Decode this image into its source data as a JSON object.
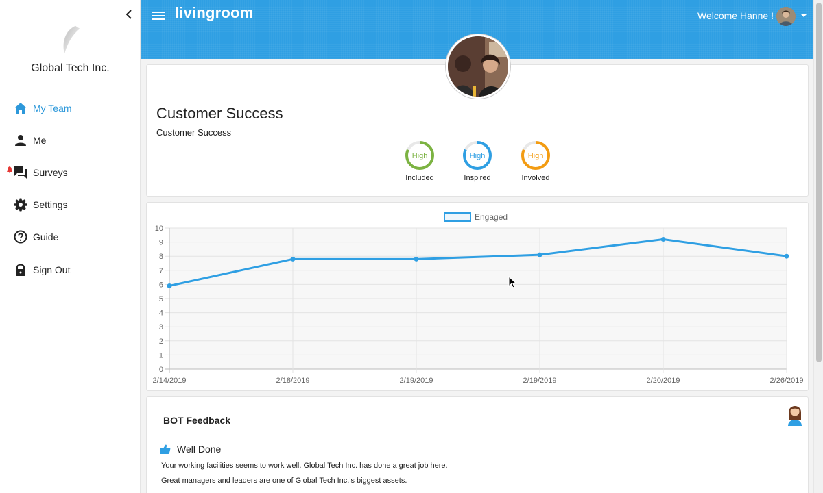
{
  "sidebar": {
    "company": "Global Tech Inc.",
    "items": [
      {
        "label": "My Team",
        "icon": "home-icon",
        "active": true
      },
      {
        "label": "Me",
        "icon": "person-icon"
      },
      {
        "label": "Surveys",
        "icon": "chat-icon",
        "notification": true
      },
      {
        "label": "Settings",
        "icon": "gear-icon"
      },
      {
        "label": "Guide",
        "icon": "help-icon"
      },
      {
        "label": "Sign Out",
        "icon": "lock-icon"
      }
    ]
  },
  "header": {
    "brand": "livingroom",
    "welcome": "Welcome Hanne !"
  },
  "team": {
    "title": "Customer Success",
    "subtitle": "Customer Success",
    "metrics": [
      {
        "value": "High",
        "label": "Included",
        "color": "#7cb342"
      },
      {
        "value": "High",
        "label": "Inspired",
        "color": "#2f9fe3"
      },
      {
        "value": "High",
        "label": "Involved",
        "color": "#f39c12"
      }
    ]
  },
  "chart_data": {
    "type": "line",
    "x": [
      "2/14/2019",
      "2/18/2019",
      "2/19/2019",
      "2/19/2019",
      "2/20/2019",
      "2/26/2019"
    ],
    "series": [
      {
        "name": "Engaged",
        "values": [
          5.9,
          7.8,
          7.8,
          8.1,
          9.2,
          8.0
        ]
      }
    ],
    "ylim": [
      0,
      10
    ],
    "yticks": [
      0,
      1,
      2,
      3,
      4,
      5,
      6,
      7,
      8,
      9,
      10
    ],
    "grid": true,
    "legend": "top-center",
    "color": "#2f9fe3"
  },
  "bot": {
    "title": "BOT Feedback",
    "feedback_title": "Well Done",
    "lines": [
      "Your working facilities seems to work well. Global Tech Inc. has done a great job here.",
      "Great managers and leaders are one of Global Tech Inc.'s biggest assets."
    ]
  }
}
